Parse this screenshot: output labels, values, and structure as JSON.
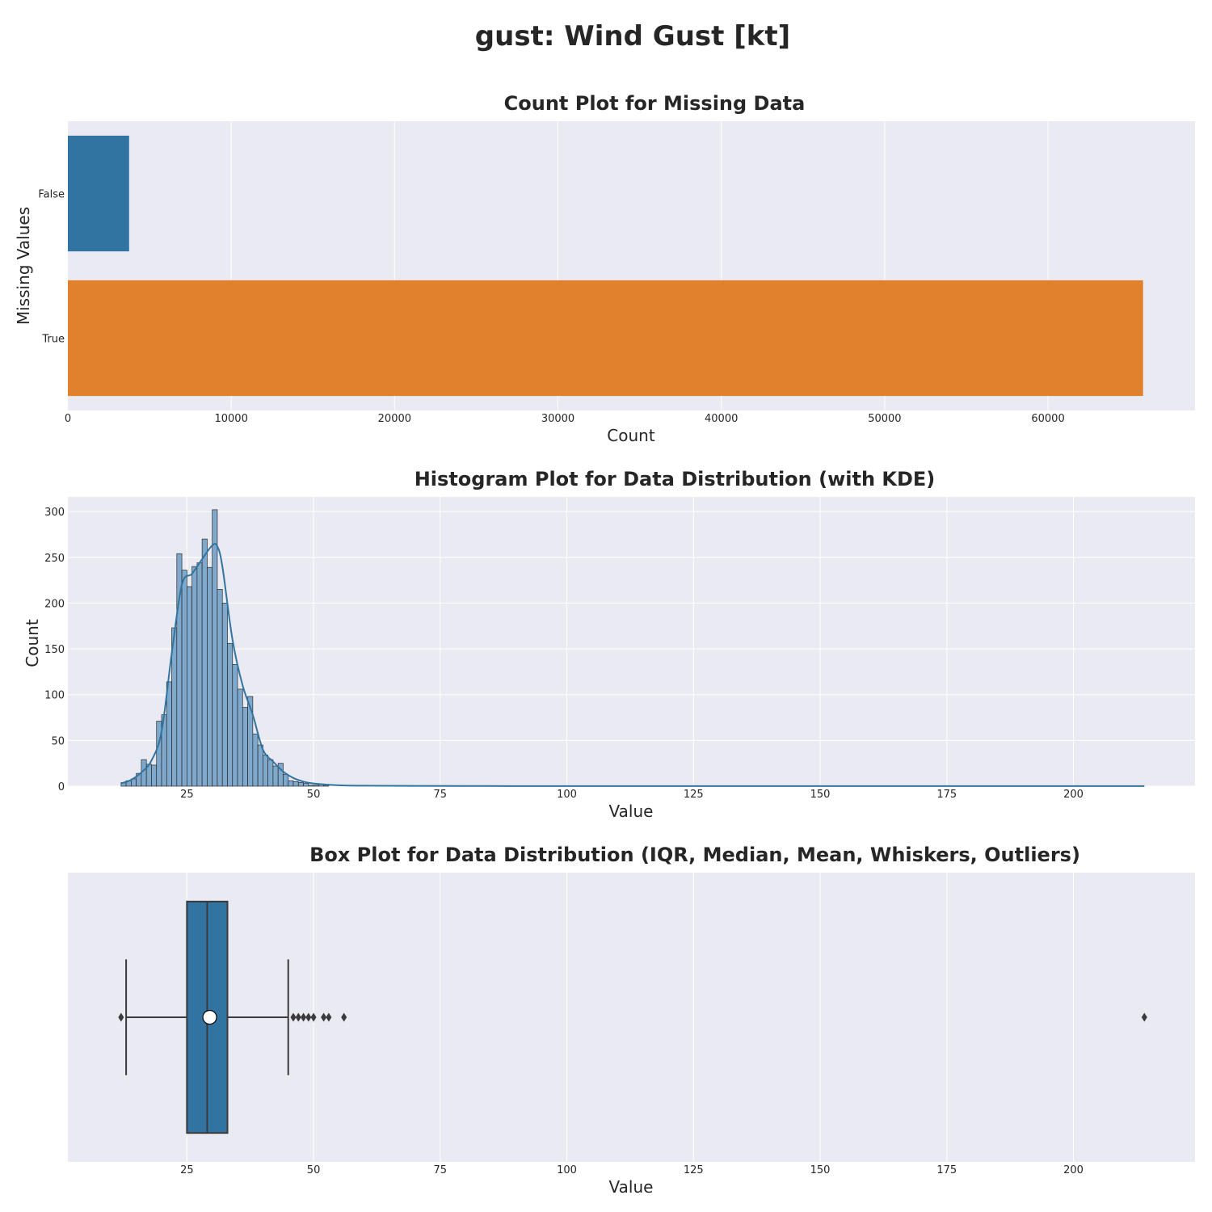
{
  "figure": {
    "title": "gust: Wind Gust [kt]"
  },
  "colors": {
    "background": "#eaeaf2",
    "grid": "#ffffff",
    "blue": "#3274a1",
    "orange": "#e1812c",
    "hist_fill": "#7ea8cc",
    "edge": "#3a3a3a"
  },
  "chart_data": [
    {
      "type": "bar",
      "orientation": "horizontal",
      "title": "Count Plot for Missing Data",
      "xlabel": "Count",
      "ylabel": "Missing Values",
      "categories": [
        "False",
        "True"
      ],
      "values": [
        3750,
        65820
      ],
      "xlim": [
        0,
        69000
      ],
      "xticks": [
        0,
        10000,
        20000,
        30000,
        40000,
        50000,
        60000
      ],
      "grid": true,
      "bar_colors": [
        "#3274a1",
        "#e1812c"
      ]
    },
    {
      "type": "bar",
      "subtype": "histogram_with_kde",
      "title": "Histogram Plot for Data Distribution (with KDE)",
      "xlabel": "Value",
      "ylabel": "Count",
      "xlim": [
        1.5,
        224
      ],
      "ylim": [
        0,
        316
      ],
      "xticks": [
        25,
        50,
        75,
        100,
        125,
        150,
        175,
        200
      ],
      "yticks": [
        0,
        50,
        100,
        150,
        200,
        250,
        300
      ],
      "bin_start": 12,
      "bin_width": 1,
      "counts": [
        4,
        6,
        8,
        14,
        29,
        24,
        23,
        71,
        78,
        114,
        173,
        254,
        236,
        218,
        240,
        244,
        270,
        239,
        302,
        215,
        200,
        156,
        133,
        106,
        86,
        98,
        57,
        45,
        34,
        29,
        22,
        25,
        13,
        6,
        5,
        4,
        3,
        1,
        1,
        2,
        1
      ],
      "kde": {
        "x": [
          12,
          14,
          16,
          18,
          20,
          22,
          24,
          26,
          28,
          30,
          31,
          32,
          34,
          36,
          38,
          40,
          42,
          44,
          46,
          48,
          50,
          55,
          60,
          80,
          120,
          214
        ],
        "y": [
          3,
          7,
          15,
          28,
          60,
          145,
          220,
          232,
          248,
          263,
          262,
          240,
          160,
          110,
          78,
          40,
          27,
          16,
          9,
          5,
          3,
          1,
          0.5,
          0.2,
          0.1,
          0.1
        ]
      },
      "grid": true
    },
    {
      "type": "box",
      "title": "Box Plot for Data Distribution (IQR, Median, Mean, Whiskers, Outliers)",
      "xlabel": "Value",
      "xlim": [
        1.5,
        224
      ],
      "xticks": [
        25,
        50,
        75,
        100,
        125,
        150,
        175,
        200
      ],
      "q1": 25,
      "median": 29,
      "q3": 33,
      "whisker_low": 13,
      "whisker_high": 45,
      "mean": 29.5,
      "outliers": [
        12,
        46,
        47,
        48,
        49,
        50,
        52,
        53,
        56,
        214
      ],
      "grid": true
    }
  ]
}
